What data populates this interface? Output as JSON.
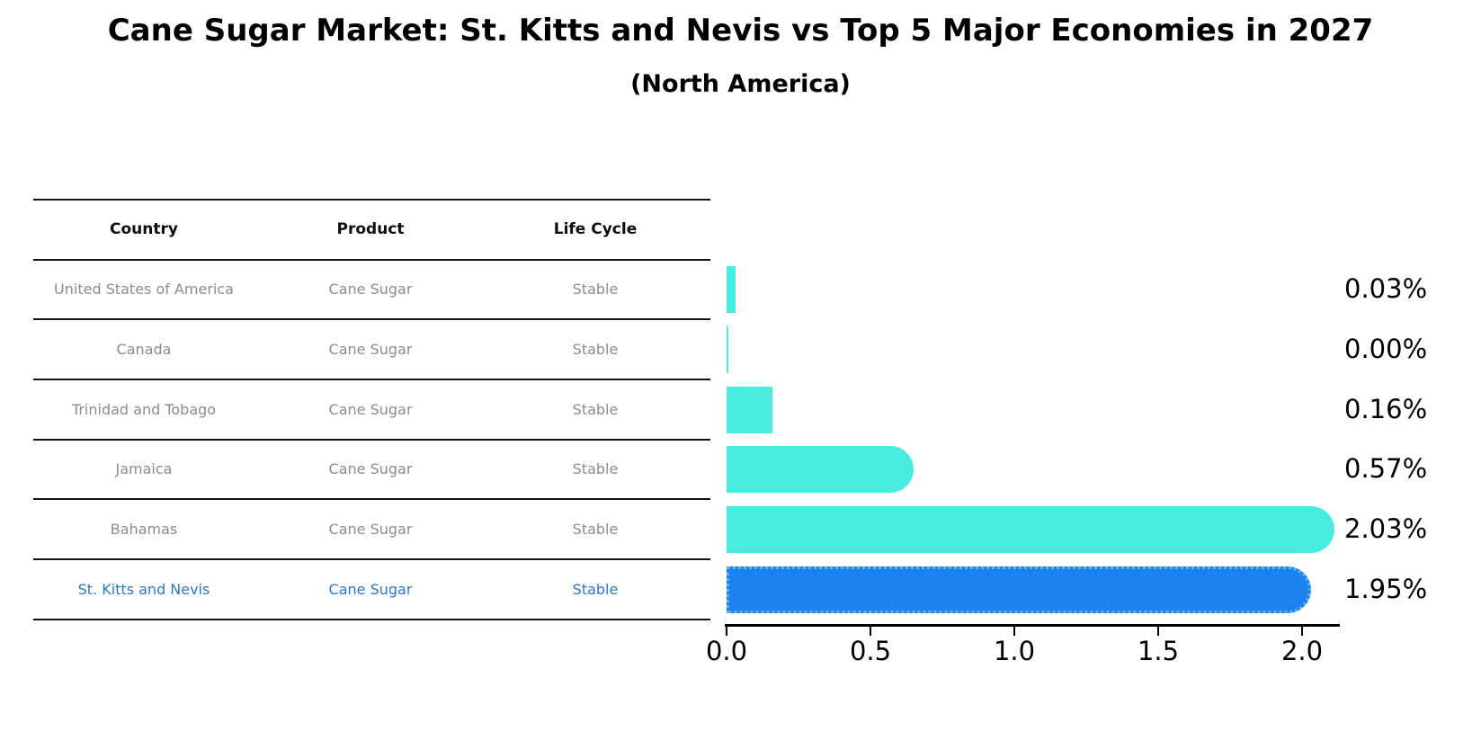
{
  "header": {
    "title": "Cane Sugar Market: St. Kitts and Nevis vs Top 5 Major Economies in 2027",
    "subtitle": "(North America)"
  },
  "table": {
    "headers": [
      "Country",
      "Product",
      "Life Cycle"
    ],
    "rows": [
      {
        "country": "United States of America",
        "product": "Cane Sugar",
        "life_cycle": "Stable",
        "highlight": false
      },
      {
        "country": "Canada",
        "product": "Cane Sugar",
        "life_cycle": "Stable",
        "highlight": false
      },
      {
        "country": "Trinidad and Tobago",
        "product": "Cane Sugar",
        "life_cycle": "Stable",
        "highlight": false
      },
      {
        "country": "Jamaica",
        "product": "Cane Sugar",
        "life_cycle": "Stable",
        "highlight": false
      },
      {
        "country": "Bahamas",
        "product": "Cane Sugar",
        "life_cycle": "Stable",
        "highlight": false
      },
      {
        "country": "St. Kitts and Nevis",
        "product": "Cane Sugar",
        "life_cycle": "Stable",
        "highlight": true
      }
    ]
  },
  "chart_data": {
    "type": "bar",
    "orientation": "horizontal",
    "title": "Cane Sugar Market: St. Kitts and Nevis vs Top 5 Major Economies in 2027",
    "subtitle": "(North America)",
    "categories": [
      "United States of America",
      "Canada",
      "Trinidad and Tobago",
      "Jamaica",
      "Bahamas",
      "St. Kitts and Nevis"
    ],
    "values": [
      0.03,
      0.0,
      0.16,
      0.57,
      2.03,
      1.95
    ],
    "value_labels": [
      "0.03%",
      "0.00%",
      "0.16%",
      "0.57%",
      "2.03%",
      "1.95%"
    ],
    "xlabel": "",
    "ylabel": "",
    "xticks": [
      "0.0",
      "0.5",
      "1.0",
      "1.5",
      "2.0"
    ],
    "xtick_values": [
      0.0,
      0.5,
      1.0,
      1.5,
      2.0
    ],
    "xlim": [
      0.0,
      2.13
    ],
    "grid": false,
    "legend": false,
    "bar_color": "#47ebe0",
    "highlight_bar_color": "#1b82ee",
    "highlight_border_color": "#5fb0f4",
    "highlight_text_color": "#2878cc",
    "row_text_color": "#8c8c8c",
    "highlight_index": 5
  }
}
